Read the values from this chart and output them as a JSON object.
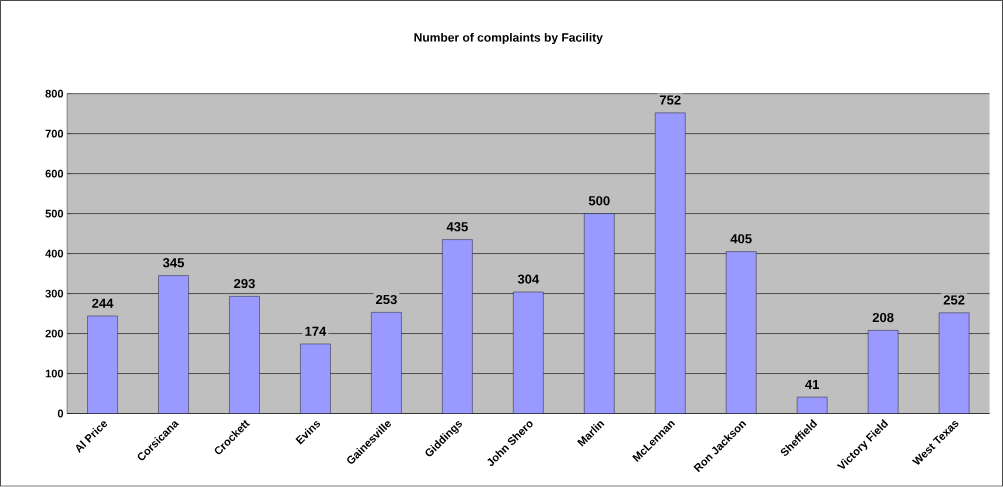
{
  "chart_data": {
    "type": "bar",
    "title": "Number of complaints by Facility",
    "categories": [
      "Al Price",
      "Corsicana",
      "Crockett",
      "Evins",
      "Gainesville",
      "Giddings",
      "John Shero",
      "Marlin",
      "McLennan",
      "Ron Jackson",
      "Sheffield",
      "Victory Field",
      "West Texas"
    ],
    "values": [
      244,
      345,
      293,
      174,
      253,
      435,
      304,
      500,
      752,
      405,
      41,
      208,
      252
    ],
    "color": "#9999ff",
    "ylim": [
      0,
      800
    ],
    "yticks": [
      0,
      100,
      200,
      300,
      400,
      500,
      600,
      700,
      800
    ],
    "grid": "y",
    "data_labels": true
  }
}
